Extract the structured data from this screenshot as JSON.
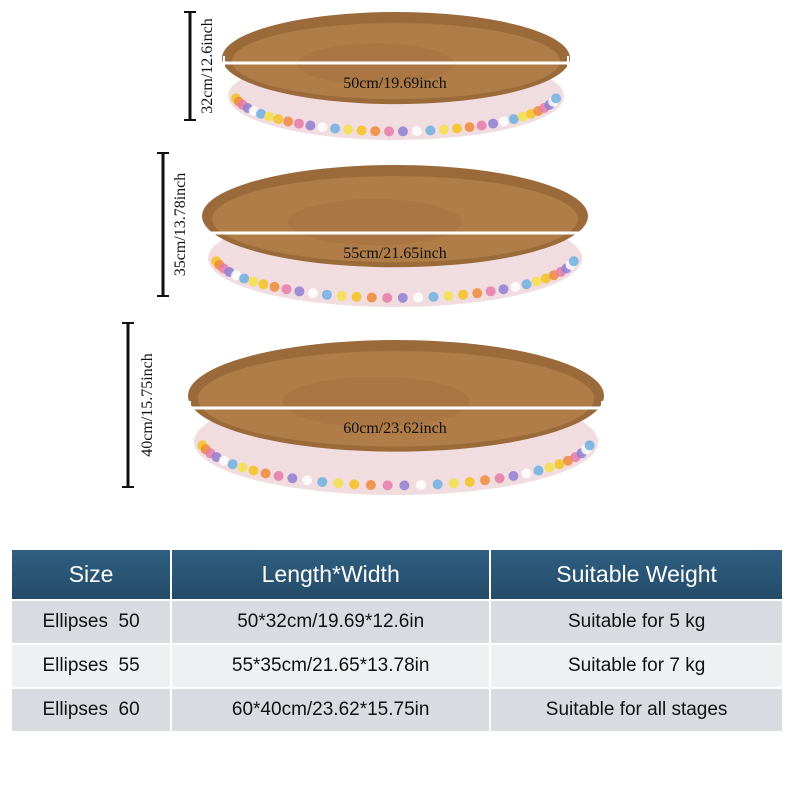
{
  "beds": [
    {
      "length_label": "50cm/19.69inch",
      "height_label": "32cm/12.6inch"
    },
    {
      "length_label": "55cm/21.65inch",
      "height_label": "35cm/13.78inch"
    },
    {
      "length_label": "60cm/23.62inch",
      "height_label": "40cm/15.75inch"
    }
  ],
  "table": {
    "header": [
      "Size",
      "Length*Width",
      "Suitable Weight"
    ],
    "rows": [
      [
        "Ellipses  50",
        "50*32cm/19.69*12.6in",
        "Suitable for 5 kg"
      ],
      [
        "Ellipses  55",
        "55*35cm/21.65*13.78in",
        "Suitable for 7 kg"
      ],
      [
        "Ellipses  60",
        "60*40cm/23.62*15.75in",
        "Suitable for all stages"
      ]
    ]
  }
}
